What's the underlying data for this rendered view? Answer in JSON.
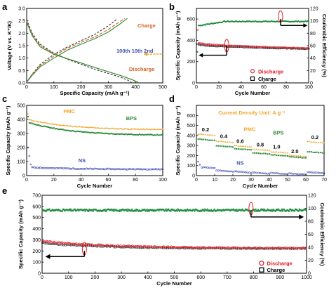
{
  "chart_data": [
    {
      "panel": "a",
      "type": "line",
      "xlabel": "Specific Capacity (mAh g⁻¹)",
      "ylabel": "Voltage (V vs. K⁺/K)",
      "xlim": [
        0,
        500
      ],
      "ylim": [
        0.0,
        3.0
      ],
      "xticks": [
        "0",
        "100",
        "200",
        "300",
        "400",
        "500"
      ],
      "yticks": [
        "0.0",
        "0.5",
        "1.0",
        "1.5",
        "2.0",
        "2.5",
        "3.0"
      ],
      "annotations": {
        "charge": "Charge",
        "discharge": "Discharge",
        "cycle_label": "100th 10th 2nd"
      },
      "series": [
        {
          "role": "2nd-discharge",
          "color": "#333333",
          "dash": "3,2",
          "points": [
            [
              0,
              2.55
            ],
            [
              20,
              2.0
            ],
            [
              50,
              1.55
            ],
            [
              100,
              1.2
            ],
            [
              150,
              0.95
            ],
            [
              200,
              0.75
            ],
            [
              250,
              0.55
            ],
            [
              300,
              0.38
            ],
            [
              340,
              0.25
            ],
            [
              370,
              0.12
            ],
            [
              385,
              0.02
            ]
          ]
        },
        {
          "role": "2nd-charge",
          "color": "#333333",
          "dash": "3,2",
          "points": [
            [
              0,
              0.03
            ],
            [
              20,
              0.35
            ],
            [
              50,
              0.75
            ],
            [
              100,
              1.15
            ],
            [
              150,
              1.45
            ],
            [
              200,
              1.7
            ],
            [
              250,
              1.95
            ],
            [
              300,
              2.3
            ],
            [
              330,
              2.55
            ]
          ]
        },
        {
          "role": "10th-discharge",
          "color": "#d4622b",
          "dash": "5,2",
          "points": [
            [
              0,
              2.5
            ],
            [
              20,
              1.95
            ],
            [
              50,
              1.5
            ],
            [
              100,
              1.18
            ],
            [
              150,
              0.97
            ],
            [
              200,
              0.8
            ],
            [
              250,
              0.62
            ],
            [
              300,
              0.45
            ],
            [
              350,
              0.28
            ],
            [
              390,
              0.12
            ],
            [
              405,
              0.02
            ]
          ]
        },
        {
          "role": "10th-charge",
          "color": "#d4622b",
          "dash": "5,2",
          "points": [
            [
              0,
              0.03
            ],
            [
              20,
              0.33
            ],
            [
              50,
              0.7
            ],
            [
              100,
              1.08
            ],
            [
              150,
              1.4
            ],
            [
              200,
              1.63
            ],
            [
              250,
              1.85
            ],
            [
              300,
              2.15
            ],
            [
              340,
              2.45
            ],
            [
              360,
              2.6
            ]
          ]
        },
        {
          "role": "100th-discharge",
          "color": "#2e8b3a",
          "dash": "",
          "points": [
            [
              0,
              2.45
            ],
            [
              20,
              1.9
            ],
            [
              50,
              1.45
            ],
            [
              100,
              1.15
            ],
            [
              150,
              0.97
            ],
            [
              200,
              0.8
            ],
            [
              250,
              0.62
            ],
            [
              300,
              0.45
            ],
            [
              350,
              0.28
            ],
            [
              390,
              0.12
            ],
            [
              410,
              0.02
            ]
          ]
        },
        {
          "role": "100th-charge",
          "color": "#2e8b3a",
          "dash": "",
          "points": [
            [
              0,
              0.03
            ],
            [
              20,
              0.3
            ],
            [
              50,
              0.65
            ],
            [
              100,
              1.0
            ],
            [
              150,
              1.32
            ],
            [
              200,
              1.56
            ],
            [
              250,
              1.78
            ],
            [
              300,
              2.05
            ],
            [
              340,
              2.35
            ],
            [
              370,
              2.6
            ]
          ]
        }
      ]
    },
    {
      "panel": "b",
      "type": "scatter",
      "xlabel": "Cycle Number",
      "ylabel": "Specific Capacity (mAh g⁻¹)",
      "y2label": "Coulombic Efficiency (%)",
      "xlim": [
        0,
        100
      ],
      "ylim": [
        0,
        700
      ],
      "y2lim": [
        0,
        120
      ],
      "xticks": [
        "0",
        "20",
        "40",
        "60",
        "80",
        "100"
      ],
      "yticks": [
        "0",
        "200",
        "400",
        "600"
      ],
      "y2ticks": [
        "0",
        "20",
        "40",
        "60",
        "80",
        "100",
        "120"
      ],
      "legend": [
        "Discharge",
        "Charge"
      ],
      "series": [
        {
          "name": "Discharge",
          "color": "#e0202a",
          "marker": "circle",
          "capacity_start": 380,
          "capacity_end": 325,
          "first": 500
        },
        {
          "name": "Charge",
          "color": "#111111",
          "marker": "square",
          "capacity_start": 365,
          "capacity_end": 320
        },
        {
          "name": "Coulombic Efficiency",
          "color": "#1e8c3a",
          "axis": "right",
          "ce_start": 92,
          "ce_end": 99,
          "first": 50
        }
      ]
    },
    {
      "panel": "c",
      "type": "scatter",
      "xlabel": "Cycle Number",
      "ylabel": "Specific Capacity (mAh g⁻¹)",
      "xlim": [
        0,
        100
      ],
      "ylim": [
        0,
        500
      ],
      "xticks": [
        "0",
        "20",
        "40",
        "60",
        "80",
        "100"
      ],
      "yticks": [
        "0",
        "100",
        "200",
        "300",
        "400",
        "500"
      ],
      "labels": [
        "PMC",
        "BPS",
        "NS"
      ],
      "series": [
        {
          "name": "PMC",
          "color": "#f0a52a",
          "first": 440,
          "start": 400,
          "end": 325
        },
        {
          "name": "BPS",
          "color": "#2e8b3a",
          "first": 420,
          "start": 380,
          "end": 285
        },
        {
          "name": "NS",
          "color": "#3f4fb0",
          "first": 200,
          "start": 60,
          "end": 45
        }
      ]
    },
    {
      "panel": "d",
      "type": "scatter",
      "xlabel": "Cycle Number",
      "ylabel": "Specific Capacity (mAh g⁻¹)",
      "xlim": [
        0,
        70
      ],
      "ylim": [
        0,
        700
      ],
      "xticks": [
        "0",
        "10",
        "20",
        "30",
        "40",
        "50",
        "60",
        "70"
      ],
      "yticks": [
        "0",
        "100",
        "200",
        "300",
        "400",
        "500",
        "600"
      ],
      "title_annotation": "Current Density Unit: A g⁻¹",
      "labels": [
        "PMC",
        "BPS",
        "NS"
      ],
      "rates": [
        {
          "label": "0.2",
          "x": 5
        },
        {
          "label": "0.4",
          "x": 15
        },
        {
          "label": "0.6",
          "x": 24
        },
        {
          "label": "0.8",
          "x": 35
        },
        {
          "label": "1.0",
          "x": 44
        },
        {
          "label": "2.0",
          "x": 54
        },
        {
          "label": "0.2",
          "x": 65
        }
      ],
      "segments_x": [
        [
          0,
          10
        ],
        [
          10,
          20
        ],
        [
          20,
          30
        ],
        [
          30,
          40
        ],
        [
          40,
          50
        ],
        [
          50,
          60
        ],
        [
          60,
          70
        ]
      ],
      "series": [
        {
          "name": "PMC",
          "color": "#f0a52a",
          "levels": [
            415,
            345,
            300,
            265,
            240,
            205,
            340
          ]
        },
        {
          "name": "BPS",
          "color": "#2e8b3a",
          "levels": [
            365,
            300,
            270,
            230,
            210,
            190,
            240
          ]
        },
        {
          "name": "NS",
          "color": "#3f4fb0",
          "levels": [
            90,
            55,
            45,
            35,
            30,
            25,
            38
          ]
        }
      ]
    },
    {
      "panel": "e",
      "type": "scatter",
      "xlabel": "Cycle Number",
      "ylabel": "Specific Capacity (mAh g⁻¹)",
      "y2label": "Coulombic Efficiency (%)",
      "xlim": [
        0,
        1000
      ],
      "ylim": [
        0,
        700
      ],
      "y2lim": [
        0,
        120
      ],
      "xticks": [
        "0",
        "100",
        "200",
        "300",
        "400",
        "500",
        "600",
        "700",
        "800",
        "900",
        "1000"
      ],
      "yticks": [
        "0",
        "100",
        "200",
        "300",
        "400",
        "500",
        "600",
        "700"
      ],
      "y2ticks": [
        "0",
        "20",
        "40",
        "60",
        "80",
        "100",
        "120"
      ],
      "legend": [
        "Discharge",
        "Charge"
      ],
      "series": [
        {
          "name": "Discharge",
          "color": "#e0202a",
          "marker": "circle",
          "start": 290,
          "end": 225
        },
        {
          "name": "Charge",
          "color": "#111111",
          "marker": "square",
          "start": 270,
          "end": 220
        },
        {
          "name": "Coulombic Efficiency",
          "color": "#1e8c3a",
          "axis": "right",
          "value": 97
        }
      ]
    }
  ]
}
